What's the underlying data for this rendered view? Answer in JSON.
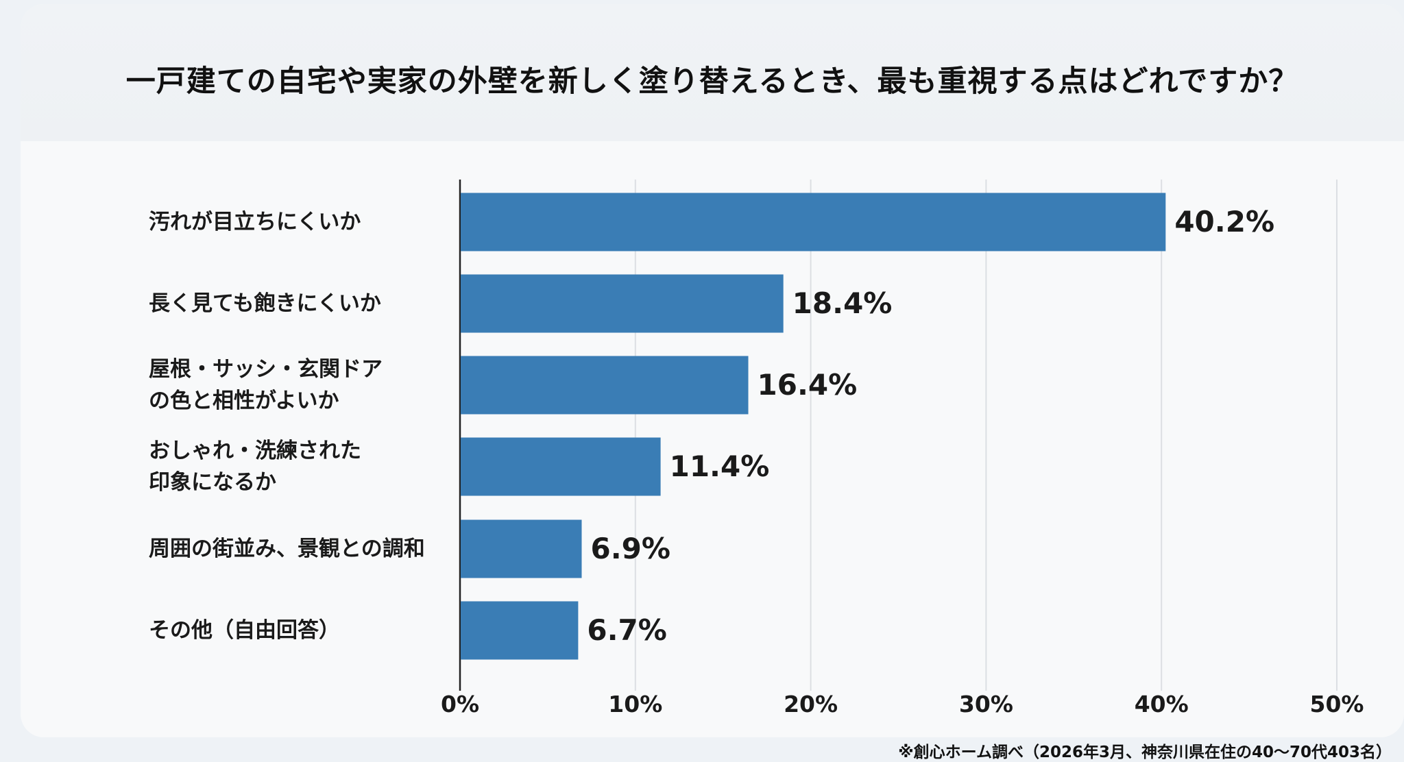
{
  "chart_data": {
    "type": "bar",
    "orientation": "horizontal",
    "title": "一戸建ての自宅や実家の外壁を新しく塗り替えるとき、最も重視する点はどれですか？",
    "categories": [
      "汚れが目立ちにくいか",
      "長く見ても飽きにくいか",
      "屋根・サッシ・玄関ドア\nの色と相性がよいか",
      "おしゃれ・洗練された\n印象になるか",
      "周囲の街並み、景観との調和",
      "その他（自由回答）"
    ],
    "values": [
      40.2,
      18.4,
      16.4,
      11.4,
      6.9,
      6.7
    ],
    "value_labels": [
      "40.2%",
      "18.4%",
      "16.4%",
      "11.4%",
      "6.9%",
      "6.7%"
    ],
    "xlim": [
      0,
      50
    ],
    "x_ticks": [
      0,
      10,
      20,
      30,
      40,
      50
    ],
    "x_tick_labels": [
      "0%",
      "10%",
      "20%",
      "30%",
      "40%",
      "50%"
    ],
    "xlabel": "",
    "ylabel": "",
    "grid": true,
    "bar_color": "#3a7db5",
    "footnote": "※創心ホーム調べ（2026年3月、神奈川県在住の40〜70代403名）"
  }
}
